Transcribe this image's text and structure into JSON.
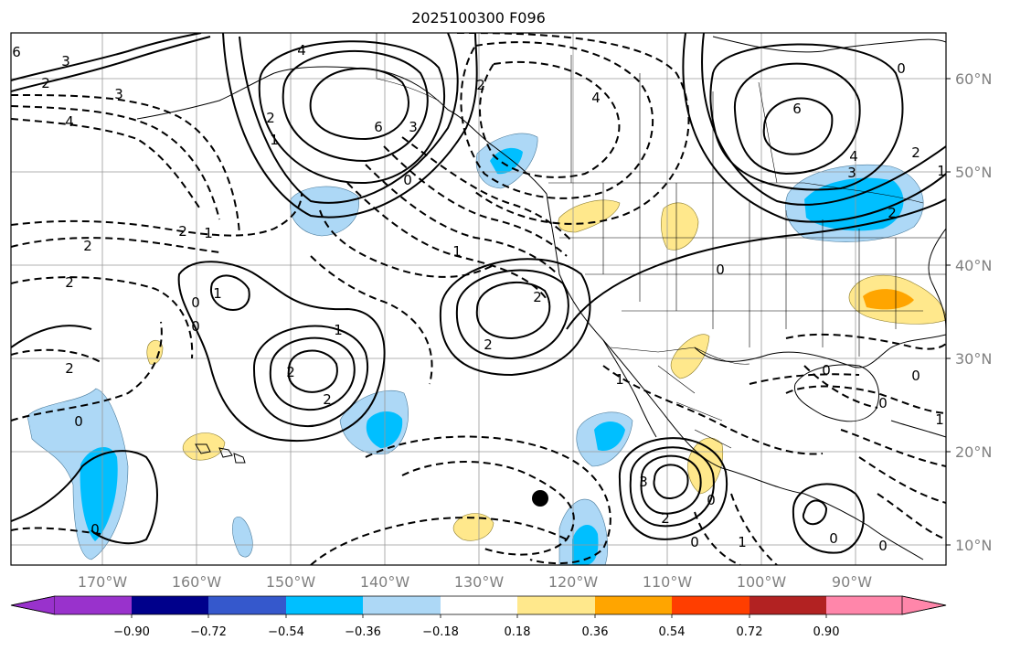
{
  "title": "2025100300 F096",
  "latitude_labels": [
    "60°N",
    "50°N",
    "40°N",
    "30°N",
    "20°N",
    "10°N"
  ],
  "longitude_labels": [
    "170°W",
    "160°W",
    "150°W",
    "140°W",
    "130°W",
    "120°W",
    "110°W",
    "100°W",
    "90°W"
  ],
  "colorbar": {
    "labels": [
      "−0.90",
      "−0.72",
      "−0.54",
      "−0.36",
      "−0.18",
      "0.18",
      "0.36",
      "0.54",
      "0.72",
      "0.90"
    ],
    "colors": [
      "#9932cc",
      "#00008b",
      "#3558cc",
      "#00bfff",
      "#add8f6",
      "#ffffff",
      "#ffe88c",
      "#ffa500",
      "#ff3e00",
      "#b22222",
      "#ff86aa"
    ]
  },
  "contour_labels": [
    "6",
    "3",
    "2",
    "4",
    "4",
    "6",
    "3",
    "0",
    "2",
    "1",
    "2",
    "4",
    "6",
    "4",
    "3",
    "2",
    "1",
    "0",
    "2",
    "1",
    "2",
    "2",
    "2",
    "0",
    "1",
    "1",
    "2",
    "2",
    "2",
    "1",
    "2",
    "0",
    "1",
    "3",
    "2",
    "0",
    "0",
    "1",
    "0",
    "0",
    "0",
    "0",
    "0",
    "2",
    "0",
    "1",
    "0",
    "3",
    "0"
  ],
  "colors": {
    "positive_contour": "#000000",
    "negative_contour": "#000000",
    "land": "#000000",
    "grid": "#999999",
    "marker": "#000000"
  }
}
